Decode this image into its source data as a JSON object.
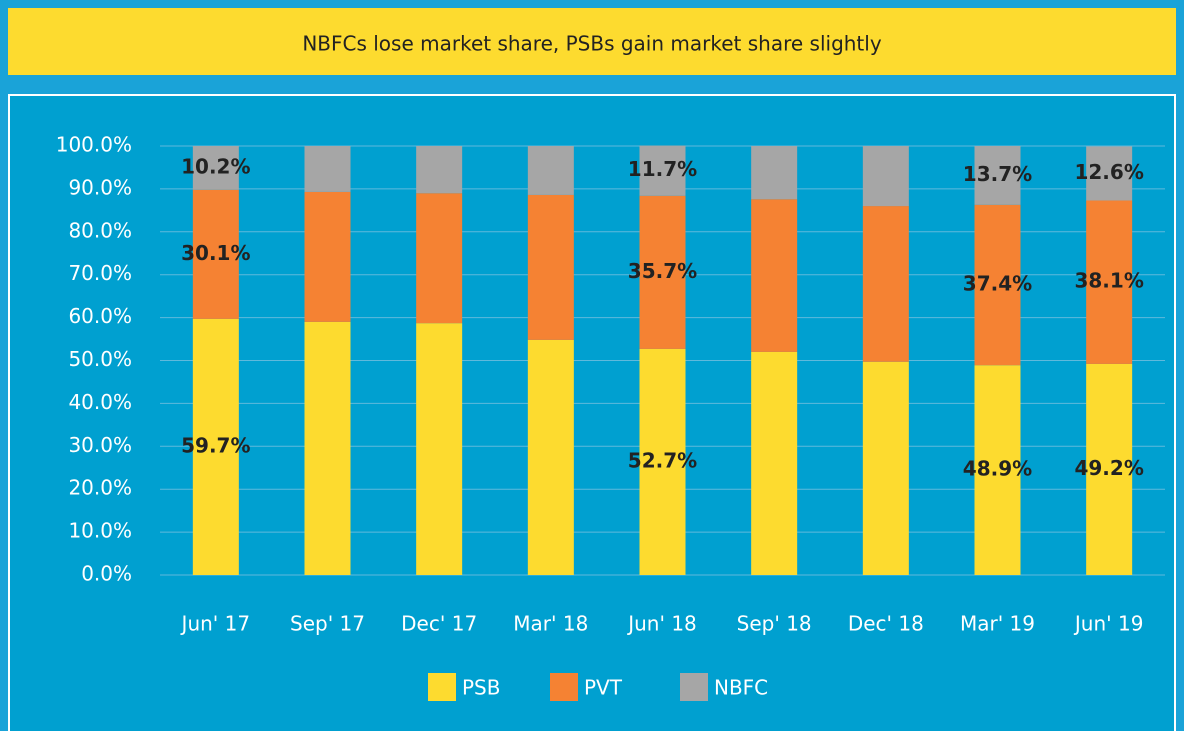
{
  "chart_data": {
    "type": "stacked_bar",
    "title": "NBFCs lose market share, PSBs gain market share slightly",
    "categories": [
      "Jun' 17",
      "Sep' 17",
      "Dec' 17",
      "Mar' 18",
      "Jun' 18",
      "Sep' 18",
      "Dec' 18",
      "Mar' 19",
      "Jun' 19"
    ],
    "series": [
      {
        "name": "PSB",
        "color": "#fddb2f",
        "values": [
          59.7,
          59.0,
          58.7,
          54.8,
          52.7,
          52.0,
          49.7,
          48.9,
          49.2
        ],
        "value_labels": [
          "59.7%",
          null,
          null,
          null,
          "52.7%",
          null,
          null,
          "48.9%",
          "49.2%"
        ]
      },
      {
        "name": "PVT",
        "color": "#f58233",
        "values": [
          30.1,
          30.3,
          30.3,
          33.8,
          35.7,
          35.6,
          36.3,
          37.4,
          38.1
        ],
        "value_labels": [
          "30.1%",
          null,
          null,
          null,
          "35.7%",
          null,
          null,
          "37.4%",
          "38.1%"
        ]
      },
      {
        "name": "NBFC",
        "color": "#a6a6a6",
        "values": [
          10.2,
          10.7,
          11.0,
          11.4,
          11.7,
          12.4,
          14.0,
          13.7,
          12.6
        ],
        "value_labels": [
          "10.2%",
          null,
          null,
          null,
          "11.7%",
          null,
          null,
          "13.7%",
          "12.6%"
        ]
      }
    ],
    "ylim": [
      0,
      100
    ],
    "yticks": [
      {
        "value": 0,
        "label": "0.0%"
      },
      {
        "value": 10,
        "label": "10.0%"
      },
      {
        "value": 20,
        "label": "20.0%"
      },
      {
        "value": 30,
        "label": "30.0%"
      },
      {
        "value": 40,
        "label": "40.0%"
      },
      {
        "value": 50,
        "label": "50.0%"
      },
      {
        "value": 60,
        "label": "60.0%"
      },
      {
        "value": 70,
        "label": "70.0%"
      },
      {
        "value": 80,
        "label": "80.0%"
      },
      {
        "value": 90,
        "label": "90.0%"
      },
      {
        "value": 100,
        "label": "100.0%"
      }
    ],
    "grid": true,
    "legend": "bottom"
  }
}
